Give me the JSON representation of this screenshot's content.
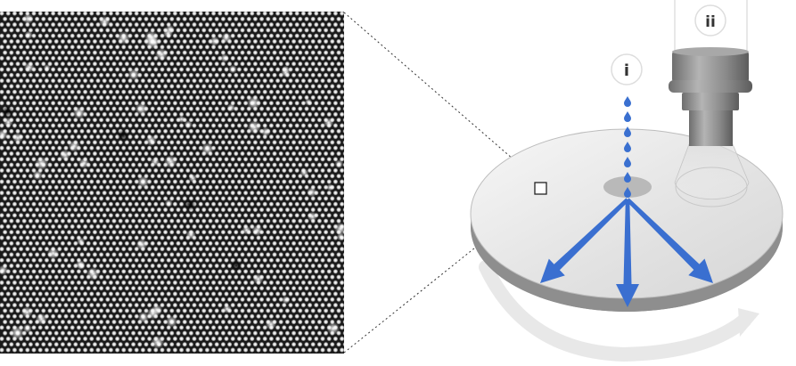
{
  "labels": {
    "step_i": "i",
    "step_ii": "ii"
  },
  "colors": {
    "arrow_blue": "#3a6fd0",
    "drop_blue": "#3a70d0",
    "atom_lattice_bg": "#1a1a1a",
    "wafer_top": "#ececec",
    "wafer_edge": "#9a9a9a",
    "objective_gray": "#8c8c8c",
    "rotation_arrow": "#e6e6e6"
  },
  "icons": {
    "droplets": "water-drop-icon",
    "objective": "microscope-objective-icon",
    "spread_arrows": "arrow-icon",
    "rotation": "curved-arrow-icon"
  },
  "diagram": {
    "droplet_count": 7,
    "spread_arrow_count": 3
  }
}
